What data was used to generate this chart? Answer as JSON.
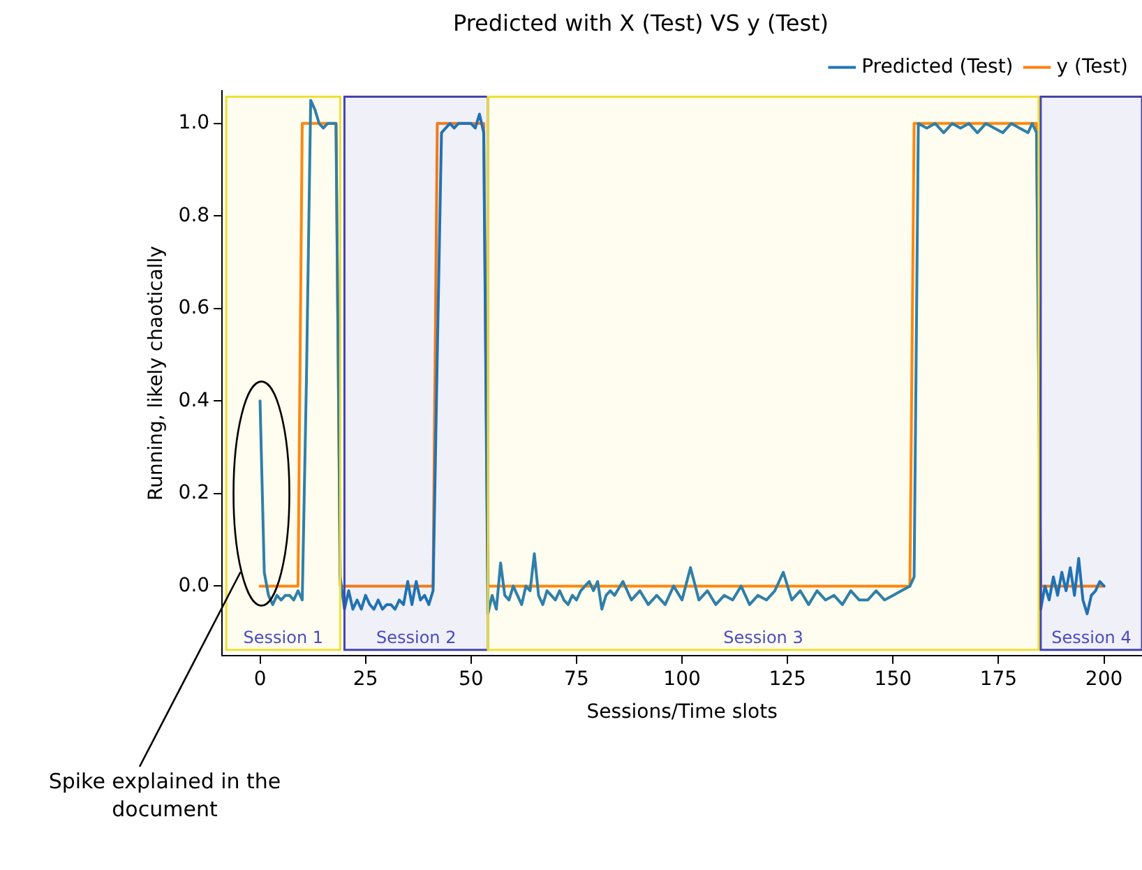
{
  "chart_data": {
    "type": "line",
    "title": "Predicted with X (Test) VS y (Test)",
    "xlabel": "Sessions/Time slots",
    "ylabel": "Running, likely chaotically",
    "xlim": [
      -9,
      209
    ],
    "xticks": [
      0,
      25,
      50,
      75,
      100,
      125,
      150,
      175,
      200
    ],
    "ylim": [
      -0.15,
      1.07
    ],
    "yticks": [
      {
        "value": 0,
        "label": "0.0"
      },
      0.2,
      0.4,
      0.6,
      0.8,
      {
        "value": 1,
        "label": "1.0"
      }
    ],
    "grid": false,
    "legend": "top right",
    "marker": "none",
    "line_style": "solid",
    "series": [
      {
        "name": "Predicted (Test)",
        "color": "#1f77b4",
        "x": [
          0,
          1,
          2,
          3,
          4,
          5,
          6,
          7,
          8,
          9,
          10,
          11,
          12,
          13,
          14,
          15,
          16,
          17,
          18,
          19,
          20,
          21,
          22,
          23,
          24,
          25,
          26,
          27,
          28,
          29,
          30,
          31,
          32,
          33,
          34,
          35,
          36,
          37,
          38,
          39,
          40,
          41,
          42,
          43,
          44,
          45,
          46,
          47,
          48,
          49,
          50,
          51,
          52,
          53,
          54,
          55,
          56,
          57,
          58,
          59,
          60,
          61,
          62,
          63,
          64,
          65,
          66,
          67,
          68,
          69,
          70,
          71,
          72,
          73,
          74,
          75,
          76,
          77,
          78,
          79,
          80,
          81,
          82,
          83,
          84,
          86,
          88,
          90,
          92,
          94,
          96,
          98,
          100,
          102,
          104,
          106,
          108,
          110,
          112,
          114,
          116,
          118,
          120,
          122,
          124,
          126,
          128,
          130,
          132,
          134,
          136,
          138,
          140,
          142,
          144,
          146,
          148,
          150,
          152,
          154,
          155,
          156,
          158,
          160,
          162,
          164,
          166,
          168,
          170,
          172,
          174,
          176,
          178,
          180,
          182,
          183,
          184,
          185,
          186,
          187,
          188,
          189,
          190,
          191,
          192,
          193,
          194,
          195,
          196,
          197,
          198,
          199,
          200
        ],
        "values": [
          0.4,
          0.03,
          -0.02,
          -0.04,
          -0.02,
          -0.03,
          -0.02,
          -0.02,
          -0.03,
          -0.01,
          -0.03,
          0.45,
          1.05,
          1.03,
          1.0,
          0.99,
          1.0,
          1.0,
          1.0,
          0.02,
          -0.05,
          -0.01,
          -0.05,
          -0.03,
          -0.05,
          -0.02,
          -0.04,
          -0.05,
          -0.03,
          -0.05,
          -0.04,
          -0.04,
          -0.05,
          -0.03,
          -0.04,
          0.01,
          -0.04,
          0.01,
          -0.03,
          -0.02,
          -0.04,
          -0.01,
          0.5,
          0.98,
          0.99,
          1.0,
          0.99,
          1.0,
          1.0,
          1.0,
          1.0,
          0.99,
          1.02,
          0.98,
          -0.06,
          -0.02,
          -0.05,
          0.05,
          -0.02,
          -0.03,
          0.0,
          -0.02,
          -0.04,
          0.0,
          -0.01,
          0.07,
          -0.02,
          -0.04,
          -0.01,
          -0.02,
          -0.03,
          -0.01,
          -0.03,
          -0.04,
          -0.02,
          -0.03,
          -0.01,
          0.0,
          0.01,
          -0.01,
          0.01,
          -0.05,
          -0.02,
          -0.01,
          -0.02,
          0.01,
          -0.03,
          -0.01,
          -0.04,
          -0.02,
          -0.04,
          0.0,
          -0.03,
          0.04,
          -0.03,
          -0.01,
          -0.04,
          -0.02,
          -0.03,
          0.0,
          -0.04,
          -0.02,
          -0.03,
          -0.01,
          0.03,
          -0.03,
          -0.01,
          -0.04,
          -0.01,
          -0.03,
          -0.02,
          -0.04,
          -0.01,
          -0.03,
          -0.03,
          -0.01,
          -0.03,
          -0.02,
          -0.01,
          0.0,
          0.02,
          1.0,
          0.99,
          1.0,
          0.98,
          1.0,
          0.99,
          1.0,
          0.98,
          1.0,
          0.99,
          0.98,
          1.0,
          0.99,
          0.98,
          1.0,
          0.98,
          -0.05,
          0.0,
          -0.03,
          0.02,
          -0.02,
          0.03,
          -0.01,
          0.04,
          -0.02,
          0.06,
          -0.03,
          -0.06,
          -0.02,
          -0.01,
          0.01,
          0.0
        ]
      },
      {
        "name": "y (Test)",
        "color": "#ff7f0e",
        "x": [
          0,
          9,
          10,
          18,
          19,
          41,
          42,
          53,
          54,
          154,
          155,
          184,
          185,
          200
        ],
        "values": [
          0,
          0,
          1,
          1,
          0,
          0,
          1,
          1,
          0,
          0,
          1,
          1,
          0,
          0
        ]
      }
    ],
    "bands": [
      {
        "axis": "x",
        "from": -8,
        "to": 19,
        "label": "Session 1",
        "color": "#f0e030"
      },
      {
        "axis": "x",
        "from": 20,
        "to": 54,
        "label": "Session 2",
        "color": "#4444b0"
      },
      {
        "axis": "x",
        "from": 54,
        "to": 184.5,
        "label": "Session 3",
        "color": "#f0e030"
      },
      {
        "axis": "x",
        "from": 185,
        "to": 209,
        "label": "Session 4",
        "color": "#4444b0"
      }
    ],
    "annotations": [
      "Spike explained in the document"
    ]
  }
}
